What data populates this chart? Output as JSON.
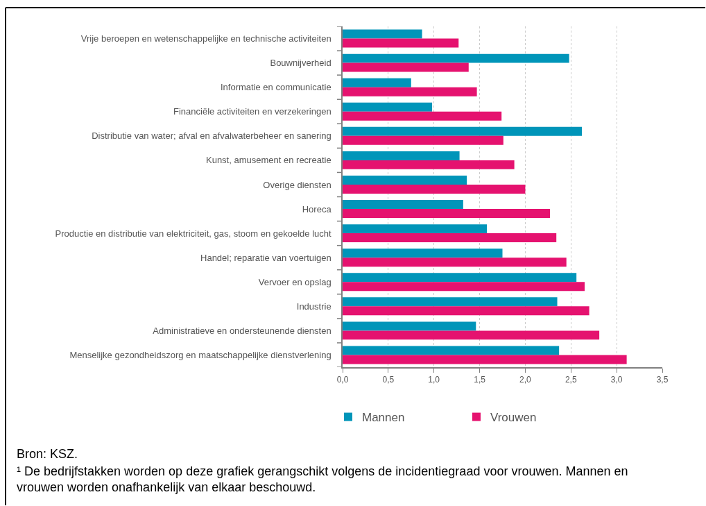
{
  "chart_data": {
    "type": "bar",
    "orientation": "horizontal",
    "categories": [
      "Vrije beroepen en wetenschappelijke en technische activiteiten",
      "Bouwnijverheid",
      "Informatie en communicatie",
      "Financiële activiteiten en verzekeringen",
      "Distributie van water; afval en afvalwaterbeheer en sanering",
      "Kunst, amusement en recreatie",
      "Overige diensten",
      "Horeca",
      "Productie en distributie van elektriciteit, gas, stoom en gekoelde lucht",
      "Handel; reparatie van voertuigen",
      "Vervoer en opslag",
      "Industrie",
      "Administratieve en ondersteunende diensten",
      "Menselijke gezondheidszorg en maatschappelijke dienstverlening"
    ],
    "series": [
      {
        "name": "Mannen",
        "color": "#0095b9",
        "values": [
          0.87,
          2.48,
          0.75,
          0.98,
          2.62,
          1.28,
          1.36,
          1.32,
          1.58,
          1.75,
          2.56,
          2.35,
          1.46,
          2.37
        ]
      },
      {
        "name": "Vrouwen",
        "color": "#e5126f",
        "values": [
          1.27,
          1.38,
          1.47,
          1.74,
          1.76,
          1.88,
          2.0,
          2.27,
          2.34,
          2.45,
          2.65,
          2.7,
          2.81,
          3.11
        ]
      }
    ],
    "xlim": [
      0,
      3.5
    ],
    "xticks": [
      {
        "value": 0,
        "label": "0,0"
      },
      {
        "value": 0.5,
        "label": "0,5"
      },
      {
        "value": 1,
        "label": "1,0"
      },
      {
        "value": 1.5,
        "label": "1,5"
      },
      {
        "value": 2,
        "label": "2,0"
      },
      {
        "value": 2.5,
        "label": "2,5"
      },
      {
        "value": 3,
        "label": "3,0"
      },
      {
        "value": 3.5,
        "label": "3,5"
      }
    ],
    "grid": "x",
    "legend": "bottom",
    "annotations": [
      "Bron: KSZ.",
      "¹ De bedrijfstakken worden op deze grafiek gerangschikt volgens de incidentiegraad voor vrouwen. Mannen en vrouwen worden onafhankelijk van elkaar beschouwd."
    ]
  }
}
